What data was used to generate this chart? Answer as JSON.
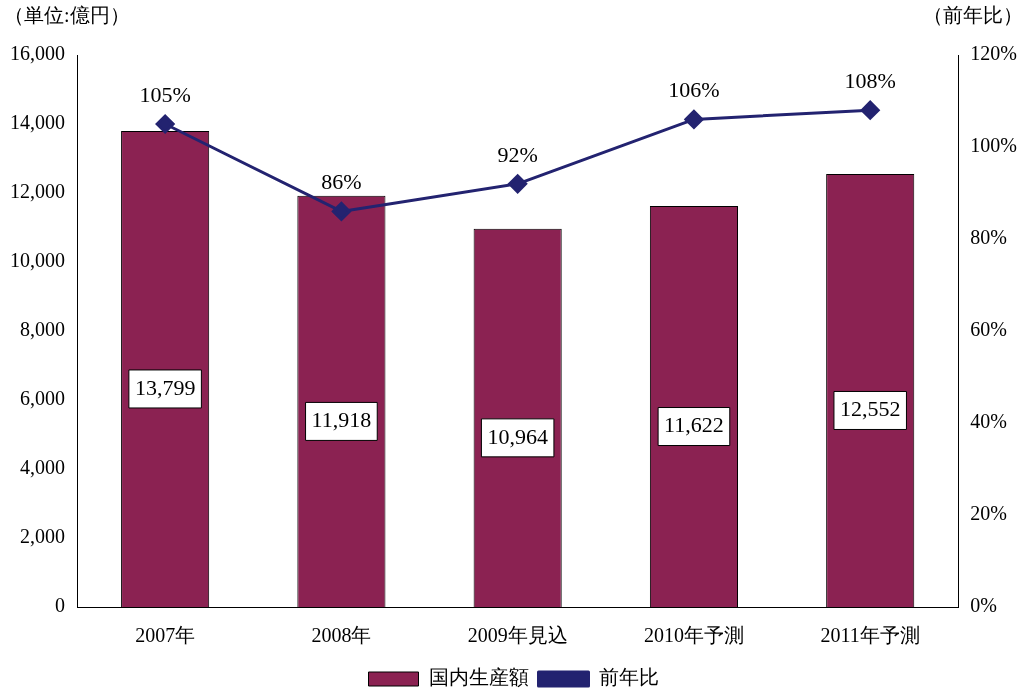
{
  "chart_data": {
    "type": "bar",
    "ylabel": "（単位:億円）",
    "y2label": "（前年比）",
    "categories": [
      "2007年",
      "2008年",
      "2009年見込",
      "2010年予測",
      "2011年予測"
    ],
    "series": [
      {
        "name": "国内生産額",
        "color": "#8b2252",
        "values": [
          13799,
          11918,
          10964,
          11622,
          12552
        ],
        "value_labels": [
          "13,799",
          "11,918",
          "10,964",
          "11,622",
          "12,552"
        ]
      },
      {
        "name": "前年比",
        "type": "line",
        "axis": "y2",
        "color": "#232370",
        "marker": "diamond",
        "values": [
          105,
          86,
          92,
          106,
          108
        ],
        "value_labels": [
          "105%",
          "86%",
          "92%",
          "106%",
          "108%"
        ]
      }
    ],
    "ylim": [
      0,
      16000
    ],
    "yticks": [
      {
        "value": 0,
        "label": "0"
      },
      {
        "value": 2000,
        "label": "2,000"
      },
      {
        "value": 4000,
        "label": "4,000"
      },
      {
        "value": 6000,
        "label": "6,000"
      },
      {
        "value": 8000,
        "label": "8,000"
      },
      {
        "value": 10000,
        "label": "10,000"
      },
      {
        "value": 12000,
        "label": "12,000"
      },
      {
        "value": 14000,
        "label": "14,000"
      },
      {
        "value": 16000,
        "label": "16,000"
      }
    ],
    "y2lim": [
      0,
      120
    ],
    "y2ticks": [
      {
        "value": 0,
        "label": "0%"
      },
      {
        "value": 20,
        "label": "20%"
      },
      {
        "value": 40,
        "label": "40%"
      },
      {
        "value": 60,
        "label": "60%"
      },
      {
        "value": 80,
        "label": "80%"
      },
      {
        "value": 100,
        "label": "100%"
      },
      {
        "value": 120,
        "label": "120%"
      }
    ],
    "legend": "bottom",
    "grid": false
  }
}
